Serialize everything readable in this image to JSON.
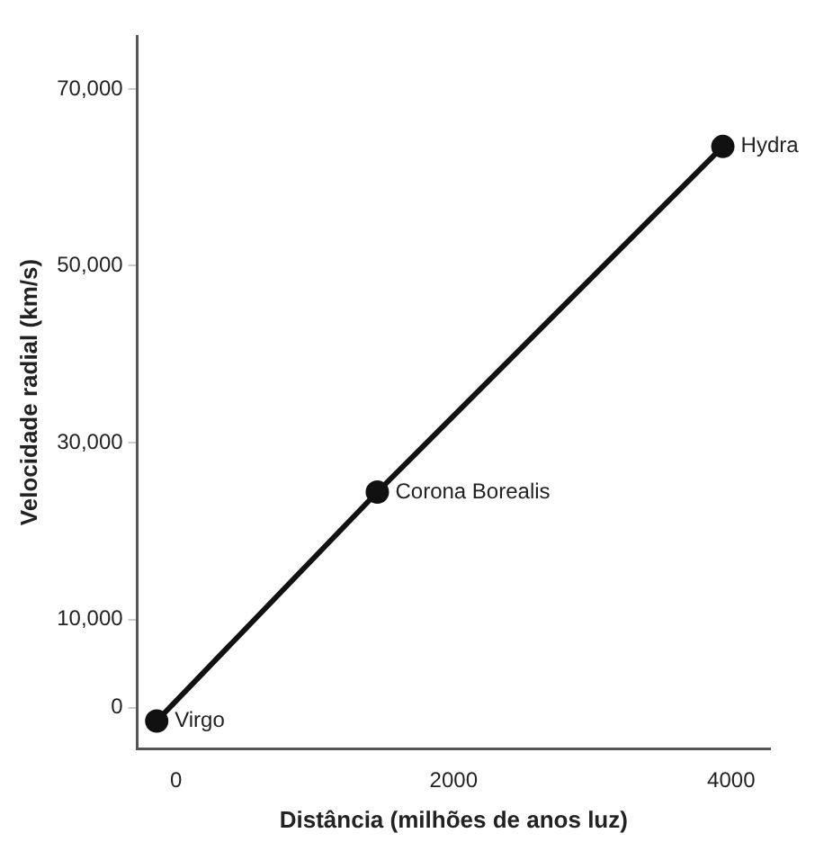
{
  "chart_data": {
    "type": "line",
    "xlabel": "Distância (milhões de anos luz)",
    "ylabel": "Velocidade radial (km/s)",
    "x": [
      -140,
      1450,
      3940
    ],
    "series": [
      {
        "color": "#111111",
        "values": [
          -1500,
          24400,
          63500
        ]
      }
    ],
    "marker": "circle",
    "line_style": "solid",
    "grid": false,
    "legend": false,
    "xlim": [
      -280,
      4280
    ],
    "xticks": [
      0,
      2000,
      4000
    ],
    "ylim": [
      -4600,
      76000
    ],
    "yticks": [
      {
        "value": 0,
        "label": "0"
      },
      {
        "value": 10000,
        "label": "10,000"
      },
      {
        "value": 30000,
        "label": "30,000"
      },
      {
        "value": 50000,
        "label": "50,000"
      },
      {
        "value": 70000,
        "label": "70,000"
      }
    ],
    "annotations": [
      {
        "text": "Virgo",
        "x": -140,
        "y": -1500
      },
      {
        "text": "Corona Borealis",
        "x": 1450,
        "y": 24400
      },
      {
        "text": "Hydra",
        "x": 3940,
        "y": 63500
      }
    ]
  }
}
